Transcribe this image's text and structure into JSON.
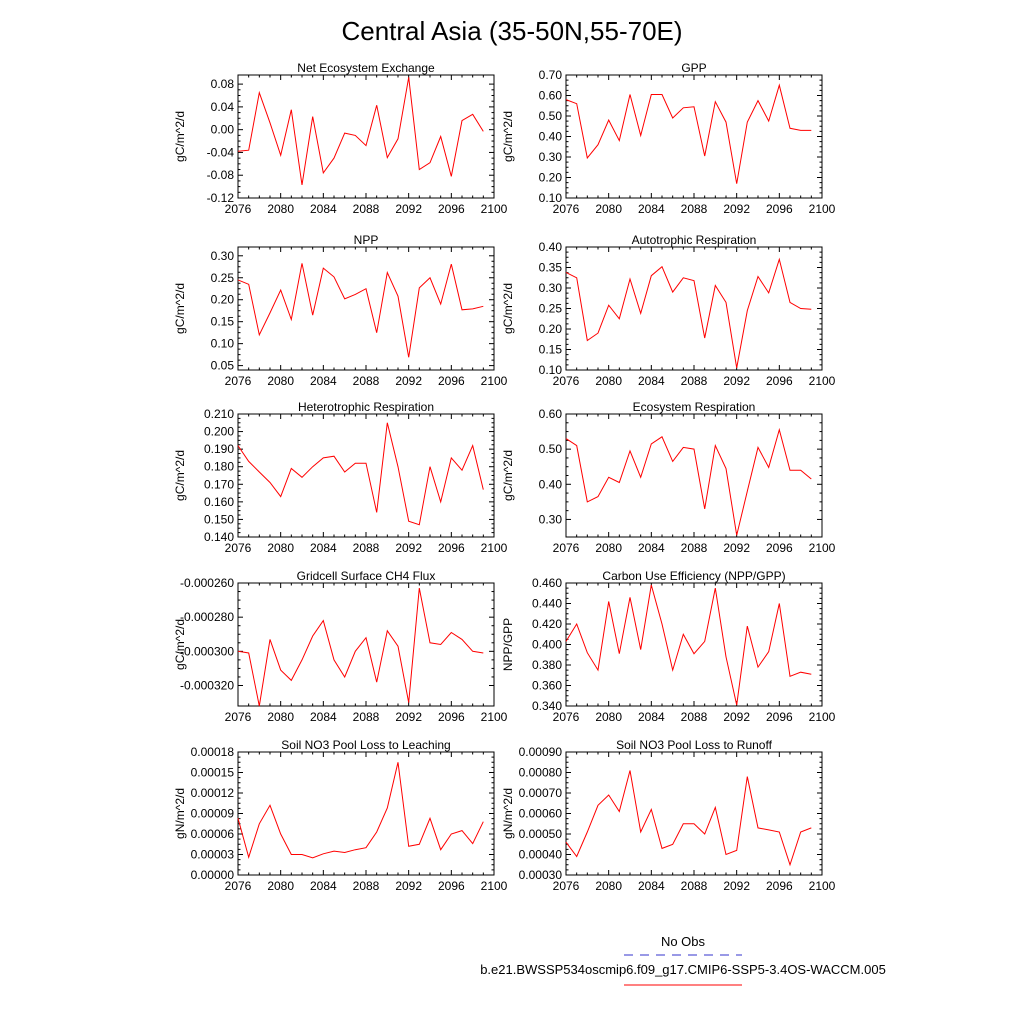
{
  "title": "Central Asia (35-50N,55-70E)",
  "x_ticks": [
    "2076",
    "2080",
    "2084",
    "2088",
    "2092",
    "2096",
    "2100"
  ],
  "years": [
    2076,
    2077,
    2078,
    2079,
    2080,
    2081,
    2082,
    2083,
    2084,
    2085,
    2086,
    2087,
    2088,
    2089,
    2090,
    2091,
    2092,
    2093,
    2094,
    2095,
    2096,
    2097,
    2098,
    2099
  ],
  "legend": {
    "obs_label": "No Obs",
    "case_label": "b.e21.BWSSP534oscmip6.f09_g17.CMIP6-SSP5-3.4OS-WACCM.005",
    "obs_color": "#3333cc",
    "case_color": "#ff0000"
  },
  "line_color": "#ff0000",
  "chart_data": [
    {
      "type": "line",
      "title": "Net Ecosystem Exchange",
      "ylabel": "gC/m^2/d",
      "xlim": [
        2076,
        2100
      ],
      "ylim": [
        -0.12,
        0.096
      ],
      "yticks": [
        -0.12,
        -0.08,
        -0.04,
        0.0,
        0.04,
        0.08
      ],
      "ytick_labels": [
        "-0.12",
        "-0.08",
        "-0.04",
        "0.00",
        "0.04",
        "0.08"
      ],
      "x": [
        2076,
        2077,
        2078,
        2079,
        2080,
        2081,
        2082,
        2083,
        2084,
        2085,
        2086,
        2087,
        2088,
        2089,
        2090,
        2091,
        2092,
        2093,
        2094,
        2095,
        2096,
        2097,
        2098,
        2099
      ],
      "values": [
        -0.038,
        -0.036,
        0.065,
        0.012,
        -0.045,
        0.035,
        -0.097,
        0.023,
        -0.076,
        -0.05,
        -0.006,
        -0.01,
        -0.028,
        0.043,
        -0.049,
        -0.016,
        0.092,
        -0.07,
        -0.058,
        -0.012,
        -0.082,
        0.016,
        0.027,
        -0.003
      ]
    },
    {
      "type": "line",
      "title": "GPP",
      "ylabel": "gC/m^2/d",
      "xlim": [
        2076,
        2100
      ],
      "ylim": [
        0.1,
        0.7
      ],
      "yticks": [
        0.1,
        0.2,
        0.3,
        0.4,
        0.5,
        0.6,
        0.7
      ],
      "ytick_labels": [
        "0.10",
        "0.20",
        "0.30",
        "0.40",
        "0.50",
        "0.60",
        "0.70"
      ],
      "x": [
        2076,
        2077,
        2078,
        2079,
        2080,
        2081,
        2082,
        2083,
        2084,
        2085,
        2086,
        2087,
        2088,
        2089,
        2090,
        2091,
        2092,
        2093,
        2094,
        2095,
        2096,
        2097,
        2098,
        2099
      ],
      "values": [
        0.58,
        0.56,
        0.295,
        0.36,
        0.48,
        0.38,
        0.605,
        0.405,
        0.605,
        0.605,
        0.49,
        0.54,
        0.545,
        0.305,
        0.57,
        0.47,
        0.17,
        0.47,
        0.575,
        0.475,
        0.65,
        0.44,
        0.43,
        0.43
      ]
    },
    {
      "type": "line",
      "title": "NPP",
      "ylabel": "gC/m^2/d",
      "xlim": [
        2076,
        2100
      ],
      "ylim": [
        0.04,
        0.32
      ],
      "yticks": [
        0.05,
        0.1,
        0.15,
        0.2,
        0.25,
        0.3
      ],
      "ytick_labels": [
        "0.05",
        "0.10",
        "0.15",
        "0.20",
        "0.25",
        "0.30"
      ],
      "x": [
        2076,
        2077,
        2078,
        2079,
        2080,
        2081,
        2082,
        2083,
        2084,
        2085,
        2086,
        2087,
        2088,
        2089,
        2090,
        2091,
        2092,
        2093,
        2094,
        2095,
        2096,
        2097,
        2098,
        2099
      ],
      "values": [
        0.245,
        0.235,
        0.12,
        0.17,
        0.222,
        0.155,
        0.283,
        0.165,
        0.272,
        0.252,
        0.202,
        0.212,
        0.225,
        0.125,
        0.262,
        0.208,
        0.069,
        0.227,
        0.25,
        0.19,
        0.281,
        0.177,
        0.179,
        0.185
      ]
    },
    {
      "type": "line",
      "title": "Autotrophic Respiration",
      "ylabel": "gC/m^2/d",
      "xlim": [
        2076,
        2100
      ],
      "ylim": [
        0.1,
        0.4
      ],
      "yticks": [
        0.1,
        0.15,
        0.2,
        0.25,
        0.3,
        0.35,
        0.4
      ],
      "ytick_labels": [
        "0.10",
        "0.15",
        "0.20",
        "0.25",
        "0.30",
        "0.35",
        "0.40"
      ],
      "x": [
        2076,
        2077,
        2078,
        2079,
        2080,
        2081,
        2082,
        2083,
        2084,
        2085,
        2086,
        2087,
        2088,
        2089,
        2090,
        2091,
        2092,
        2093,
        2094,
        2095,
        2096,
        2097,
        2098,
        2099
      ],
      "values": [
        0.338,
        0.325,
        0.172,
        0.19,
        0.258,
        0.225,
        0.322,
        0.238,
        0.33,
        0.352,
        0.29,
        0.325,
        0.318,
        0.178,
        0.306,
        0.265,
        0.105,
        0.245,
        0.328,
        0.288,
        0.37,
        0.265,
        0.25,
        0.248
      ]
    },
    {
      "type": "line",
      "title": "Heterotrophic Respiration",
      "ylabel": "gC/m^2/d",
      "xlim": [
        2076,
        2100
      ],
      "ylim": [
        0.14,
        0.21
      ],
      "yticks": [
        0.14,
        0.15,
        0.16,
        0.17,
        0.18,
        0.19,
        0.2,
        0.21
      ],
      "ytick_labels": [
        "0.140",
        "0.150",
        "0.160",
        "0.170",
        "0.180",
        "0.190",
        "0.200",
        "0.210"
      ],
      "x": [
        2076,
        2077,
        2078,
        2079,
        2080,
        2081,
        2082,
        2083,
        2084,
        2085,
        2086,
        2087,
        2088,
        2089,
        2090,
        2091,
        2092,
        2093,
        2094,
        2095,
        2096,
        2097,
        2098,
        2099
      ],
      "values": [
        0.192,
        0.183,
        0.177,
        0.171,
        0.163,
        0.179,
        0.174,
        0.18,
        0.185,
        0.186,
        0.177,
        0.182,
        0.182,
        0.154,
        0.205,
        0.18,
        0.149,
        0.147,
        0.18,
        0.16,
        0.185,
        0.178,
        0.192,
        0.167
      ]
    },
    {
      "type": "line",
      "title": "Ecosystem Respiration",
      "ylabel": "gC/m^2/d",
      "xlim": [
        2076,
        2100
      ],
      "ylim": [
        0.25,
        0.6
      ],
      "yticks": [
        0.3,
        0.4,
        0.5,
        0.6
      ],
      "ytick_labels": [
        "0.30",
        "0.40",
        "0.50",
        "0.60"
      ],
      "x": [
        2076,
        2077,
        2078,
        2079,
        2080,
        2081,
        2082,
        2083,
        2084,
        2085,
        2086,
        2087,
        2088,
        2089,
        2090,
        2091,
        2092,
        2093,
        2094,
        2095,
        2096,
        2097,
        2098,
        2099
      ],
      "values": [
        0.53,
        0.51,
        0.35,
        0.365,
        0.42,
        0.405,
        0.495,
        0.42,
        0.515,
        0.535,
        0.465,
        0.505,
        0.5,
        0.33,
        0.51,
        0.445,
        0.255,
        0.38,
        0.505,
        0.448,
        0.555,
        0.44,
        0.44,
        0.415
      ]
    },
    {
      "type": "line",
      "title": "Gridcell Surface CH4 Flux",
      "ylabel": "gC/m^2/d",
      "xlim": [
        2076,
        2100
      ],
      "ylim": [
        -0.000332,
        -0.00026
      ],
      "yticks": [
        -0.00032,
        -0.0003,
        -0.00028,
        -0.00026
      ],
      "ytick_labels": [
        "-0.000320",
        "-0.000300",
        "-0.000280",
        "-0.000260"
      ],
      "x": [
        2076,
        2077,
        2078,
        2079,
        2080,
        2081,
        2082,
        2083,
        2084,
        2085,
        2086,
        2087,
        2088,
        2089,
        2090,
        2091,
        2092,
        2093,
        2094,
        2095,
        2096,
        2097,
        2098,
        2099
      ],
      "values": [
        -0.0003,
        -0.000301,
        -0.000332,
        -0.000293,
        -0.000311,
        -0.000317,
        -0.000305,
        -0.000291,
        -0.000282,
        -0.000305,
        -0.000315,
        -0.0003,
        -0.000292,
        -0.000318,
        -0.000288,
        -0.000297,
        -0.00033,
        -0.000263,
        -0.000295,
        -0.000296,
        -0.000289,
        -0.000293,
        -0.0003,
        -0.000301
      ]
    },
    {
      "type": "line",
      "title": "Carbon Use Efficiency (NPP/GPP)",
      "ylabel": "NPP/GPP",
      "xlim": [
        2076,
        2100
      ],
      "ylim": [
        0.34,
        0.46
      ],
      "yticks": [
        0.34,
        0.36,
        0.38,
        0.4,
        0.42,
        0.44,
        0.46
      ],
      "ytick_labels": [
        "0.340",
        "0.360",
        "0.380",
        "0.400",
        "0.420",
        "0.440",
        "0.460"
      ],
      "x": [
        2076,
        2077,
        2078,
        2079,
        2080,
        2081,
        2082,
        2083,
        2084,
        2085,
        2086,
        2087,
        2088,
        2089,
        2090,
        2091,
        2092,
        2093,
        2094,
        2095,
        2096,
        2097,
        2098,
        2099
      ],
      "values": [
        0.403,
        0.42,
        0.392,
        0.375,
        0.442,
        0.391,
        0.446,
        0.395,
        0.458,
        0.42,
        0.375,
        0.41,
        0.391,
        0.403,
        0.455,
        0.388,
        0.341,
        0.418,
        0.378,
        0.393,
        0.44,
        0.369,
        0.373,
        0.371
      ]
    },
    {
      "type": "line",
      "title": "Soil NO3 Pool Loss to Leaching",
      "ylabel": "gN/m^2/d",
      "xlim": [
        2076,
        2100
      ],
      "ylim": [
        0.0,
        0.00018
      ],
      "yticks": [
        0,
        3e-05,
        6e-05,
        9e-05,
        0.00012,
        0.00015,
        0.00018
      ],
      "ytick_labels": [
        "0.00000",
        "0.00003",
        "0.00006",
        "0.00009",
        "0.00012",
        "0.00015",
        "0.00018"
      ],
      "x": [
        2076,
        2077,
        2078,
        2079,
        2080,
        2081,
        2082,
        2083,
        2084,
        2085,
        2086,
        2087,
        2088,
        2089,
        2090,
        2091,
        2092,
        2093,
        2094,
        2095,
        2096,
        2097,
        2098,
        2099
      ],
      "values": [
        8.3e-05,
        2.6e-05,
        7.5e-05,
        0.000102,
        6e-05,
        3e-05,
        3e-05,
        2.5e-05,
        3.1e-05,
        3.5e-05,
        3.3e-05,
        3.7e-05,
        4e-05,
        6.3e-05,
        9.8e-05,
        0.000165,
        4.2e-05,
        4.5e-05,
        8.3e-05,
        3.7e-05,
        6e-05,
        6.5e-05,
        4.6e-05,
        7.8e-05
      ]
    },
    {
      "type": "line",
      "title": "Soil NO3 Pool Loss to Runoff",
      "ylabel": "gN/m^2/d",
      "xlim": [
        2076,
        2100
      ],
      "ylim": [
        0.0003,
        0.0009
      ],
      "yticks": [
        0.0003,
        0.0004,
        0.0005,
        0.0006,
        0.0007,
        0.0008,
        0.0009
      ],
      "ytick_labels": [
        "0.00030",
        "0.00040",
        "0.00050",
        "0.00060",
        "0.00070",
        "0.00080",
        "0.00090"
      ],
      "x": [
        2076,
        2077,
        2078,
        2079,
        2080,
        2081,
        2082,
        2083,
        2084,
        2085,
        2086,
        2087,
        2088,
        2089,
        2090,
        2091,
        2092,
        2093,
        2094,
        2095,
        2096,
        2097,
        2098,
        2099
      ],
      "values": [
        0.00046,
        0.00039,
        0.00051,
        0.00064,
        0.00069,
        0.00061,
        0.00081,
        0.00051,
        0.00062,
        0.00043,
        0.00045,
        0.00055,
        0.00055,
        0.0005,
        0.00063,
        0.0004,
        0.00042,
        0.00078,
        0.00053,
        0.00052,
        0.00051,
        0.00035,
        0.00051,
        0.00053
      ]
    }
  ]
}
